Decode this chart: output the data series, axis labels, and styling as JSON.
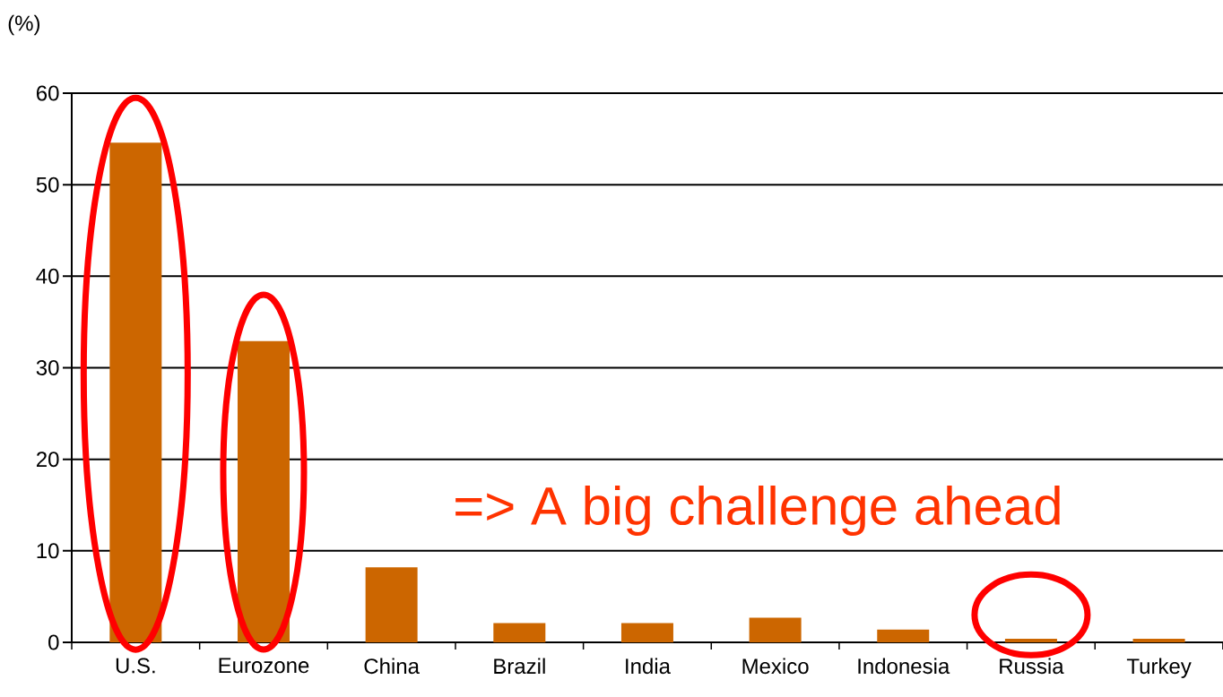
{
  "chart_data": {
    "type": "bar",
    "ylabel": "(%)",
    "categories": [
      "U.S.",
      "Eurozone",
      "China",
      "Brazil",
      "India",
      "Mexico",
      "Indonesia",
      "Russia",
      "Turkey"
    ],
    "values": [
      54.6,
      32.9,
      8.2,
      2.1,
      2.1,
      2.7,
      1.4,
      0.4,
      0.4
    ],
    "color": "#cc6600",
    "ylim": [
      0,
      60
    ],
    "yticks": [
      0,
      10,
      20,
      30,
      40,
      50,
      60
    ],
    "grid": "y",
    "annotations": [
      "=> A big challenge ahead"
    ]
  }
}
